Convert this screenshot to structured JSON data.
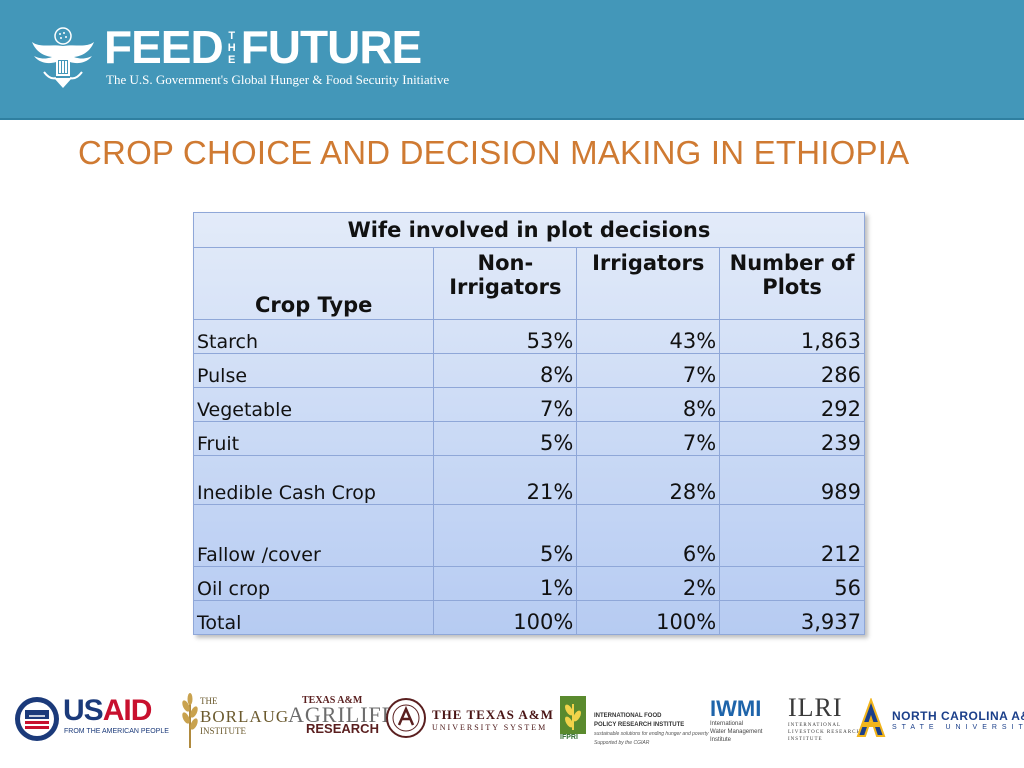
{
  "header": {
    "brand_left": "FEED",
    "brand_the": [
      "T",
      "H",
      "E"
    ],
    "brand_right": "FUTURE",
    "tagline": "The U.S. Government's Global Hunger & Food Security Initiative",
    "background_color": "#4397b9"
  },
  "slide": {
    "title": "CROP CHOICE AND DECISION MAKING IN ETHIOPIA",
    "title_color": "#cf7a32"
  },
  "table": {
    "caption": "Wife involved in plot decisions",
    "columns": [
      "Crop Type",
      "Non-Irrigators",
      "Irrigators",
      "Number of Plots"
    ],
    "rows": [
      {
        "crop": "Starch",
        "non_irrigators": "53%",
        "irrigators": "43%",
        "plots": "1,863"
      },
      {
        "crop": "Pulse",
        "non_irrigators": "8%",
        "irrigators": "7%",
        "plots": "286"
      },
      {
        "crop": "Vegetable",
        "non_irrigators": "7%",
        "irrigators": "8%",
        "plots": "292"
      },
      {
        "crop": "Fruit",
        "non_irrigators": "5%",
        "irrigators": "7%",
        "plots": "239"
      },
      {
        "crop": "Inedible Cash Crop",
        "non_irrigators": "21%",
        "irrigators": "28%",
        "plots": "989"
      },
      {
        "crop": "Fallow /cover",
        "non_irrigators": "5%",
        "irrigators": "6%",
        "plots": "212"
      },
      {
        "crop": "Oil crop",
        "non_irrigators": "1%",
        "irrigators": "2%",
        "plots": "56"
      },
      {
        "crop": "Total",
        "non_irrigators": "100%",
        "irrigators": "100%",
        "plots": "3,937"
      }
    ]
  },
  "logos": {
    "usaid": {
      "word_blue": "US",
      "word_red": "AID",
      "sub": "FROM THE AMERICAN PEOPLE"
    },
    "borlaug": {
      "line1": "THE",
      "line2": "BORLAUG",
      "line3": "INSTITUTE"
    },
    "agrilife": {
      "line1": "TEXAS A&M",
      "line2": "AGRILIFE",
      "line3": "RESEARCH"
    },
    "tamus": {
      "line1": "THE TEXAS A&M",
      "line2": "UNIVERSITY SYSTEM"
    },
    "ifpri": {
      "tag": "IFPRI",
      "line1": "INTERNATIONAL FOOD",
      "line2": "POLICY RESEARCH INSTITUTE",
      "line3": "sustainable solutions for ending hunger and poverty",
      "line4": "Supported by the CGIAR"
    },
    "iwmi": {
      "word": "IWMI",
      "line1": "International",
      "line2": "Water Management",
      "line3": "Institute"
    },
    "ilri": {
      "word": "ILRI",
      "line1": "INTERNATIONAL",
      "line2": "LIVESTOCK RESEARCH",
      "line3": "INSTITUTE"
    },
    "ncat": {
      "line1": "NORTH CAROLINA A&T",
      "line2": "STATE UNIVERSITY"
    }
  }
}
